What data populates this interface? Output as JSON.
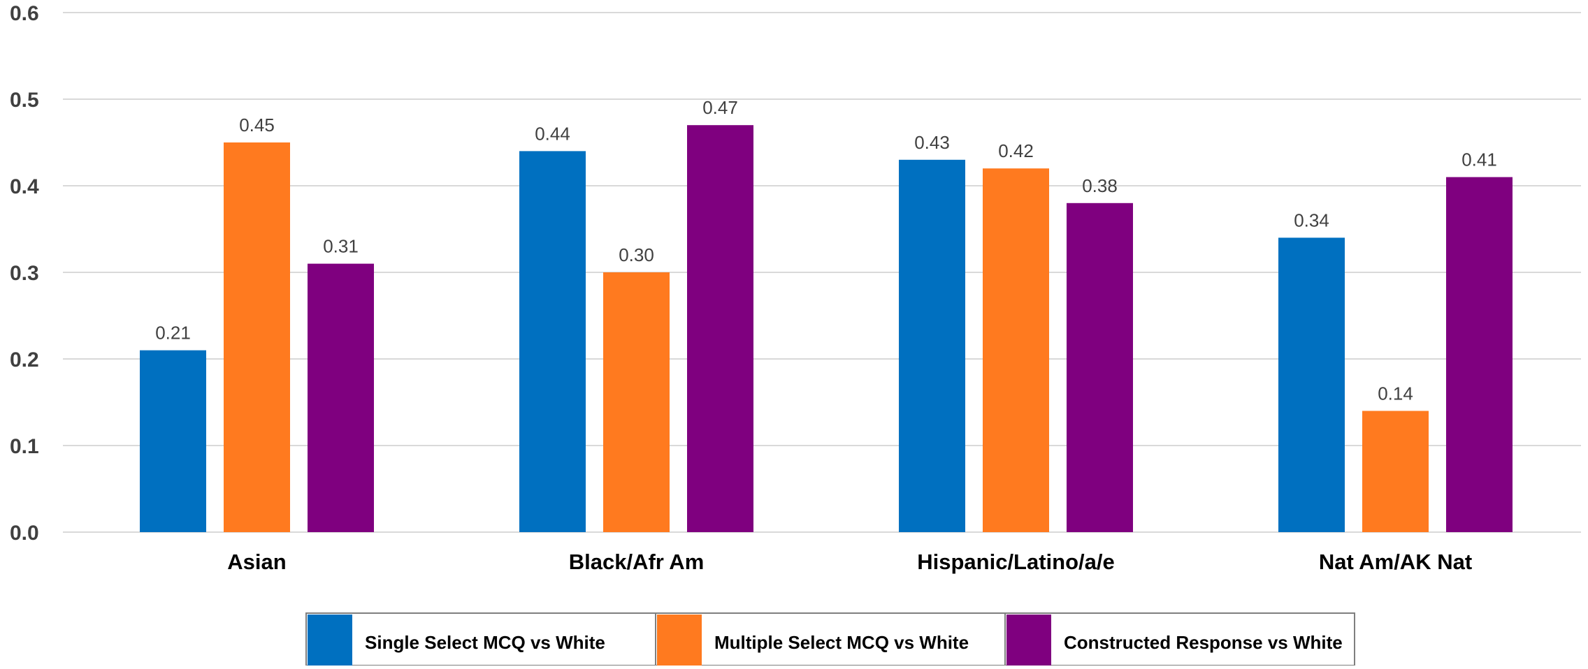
{
  "chart_data": {
    "type": "bar",
    "categories": [
      "Asian",
      "Black/Afr Am",
      "Hispanic/Latino/a/e",
      "Nat Am/AK Nat"
    ],
    "series": [
      {
        "name": "Single Select MCQ vs White",
        "color": "#0070c0",
        "values": [
          0.21,
          0.44,
          0.43,
          0.34
        ]
      },
      {
        "name": "Multiple Select MCQ vs White",
        "color": "#ff7a1f",
        "values": [
          0.45,
          0.3,
          0.42,
          0.14
        ]
      },
      {
        "name": "Constructed Response vs White",
        "color": "#7f007f",
        "values": [
          0.31,
          0.47,
          0.38,
          0.41
        ]
      }
    ],
    "data_labels": [
      [
        "0.21",
        "0.44",
        "0.43",
        "0.34"
      ],
      [
        "0.45",
        "0.30",
        "0.42",
        "0.14"
      ],
      [
        "0.31",
        "0.47",
        "0.38",
        "0.41"
      ]
    ],
    "yticks": [
      "0.0",
      "0.1",
      "0.2",
      "0.3",
      "0.4",
      "0.5",
      "0.6"
    ],
    "ylim": [
      0,
      0.6
    ],
    "grid": true,
    "legend_position": "bottom",
    "title": "",
    "xlabel": "",
    "ylabel": ""
  }
}
